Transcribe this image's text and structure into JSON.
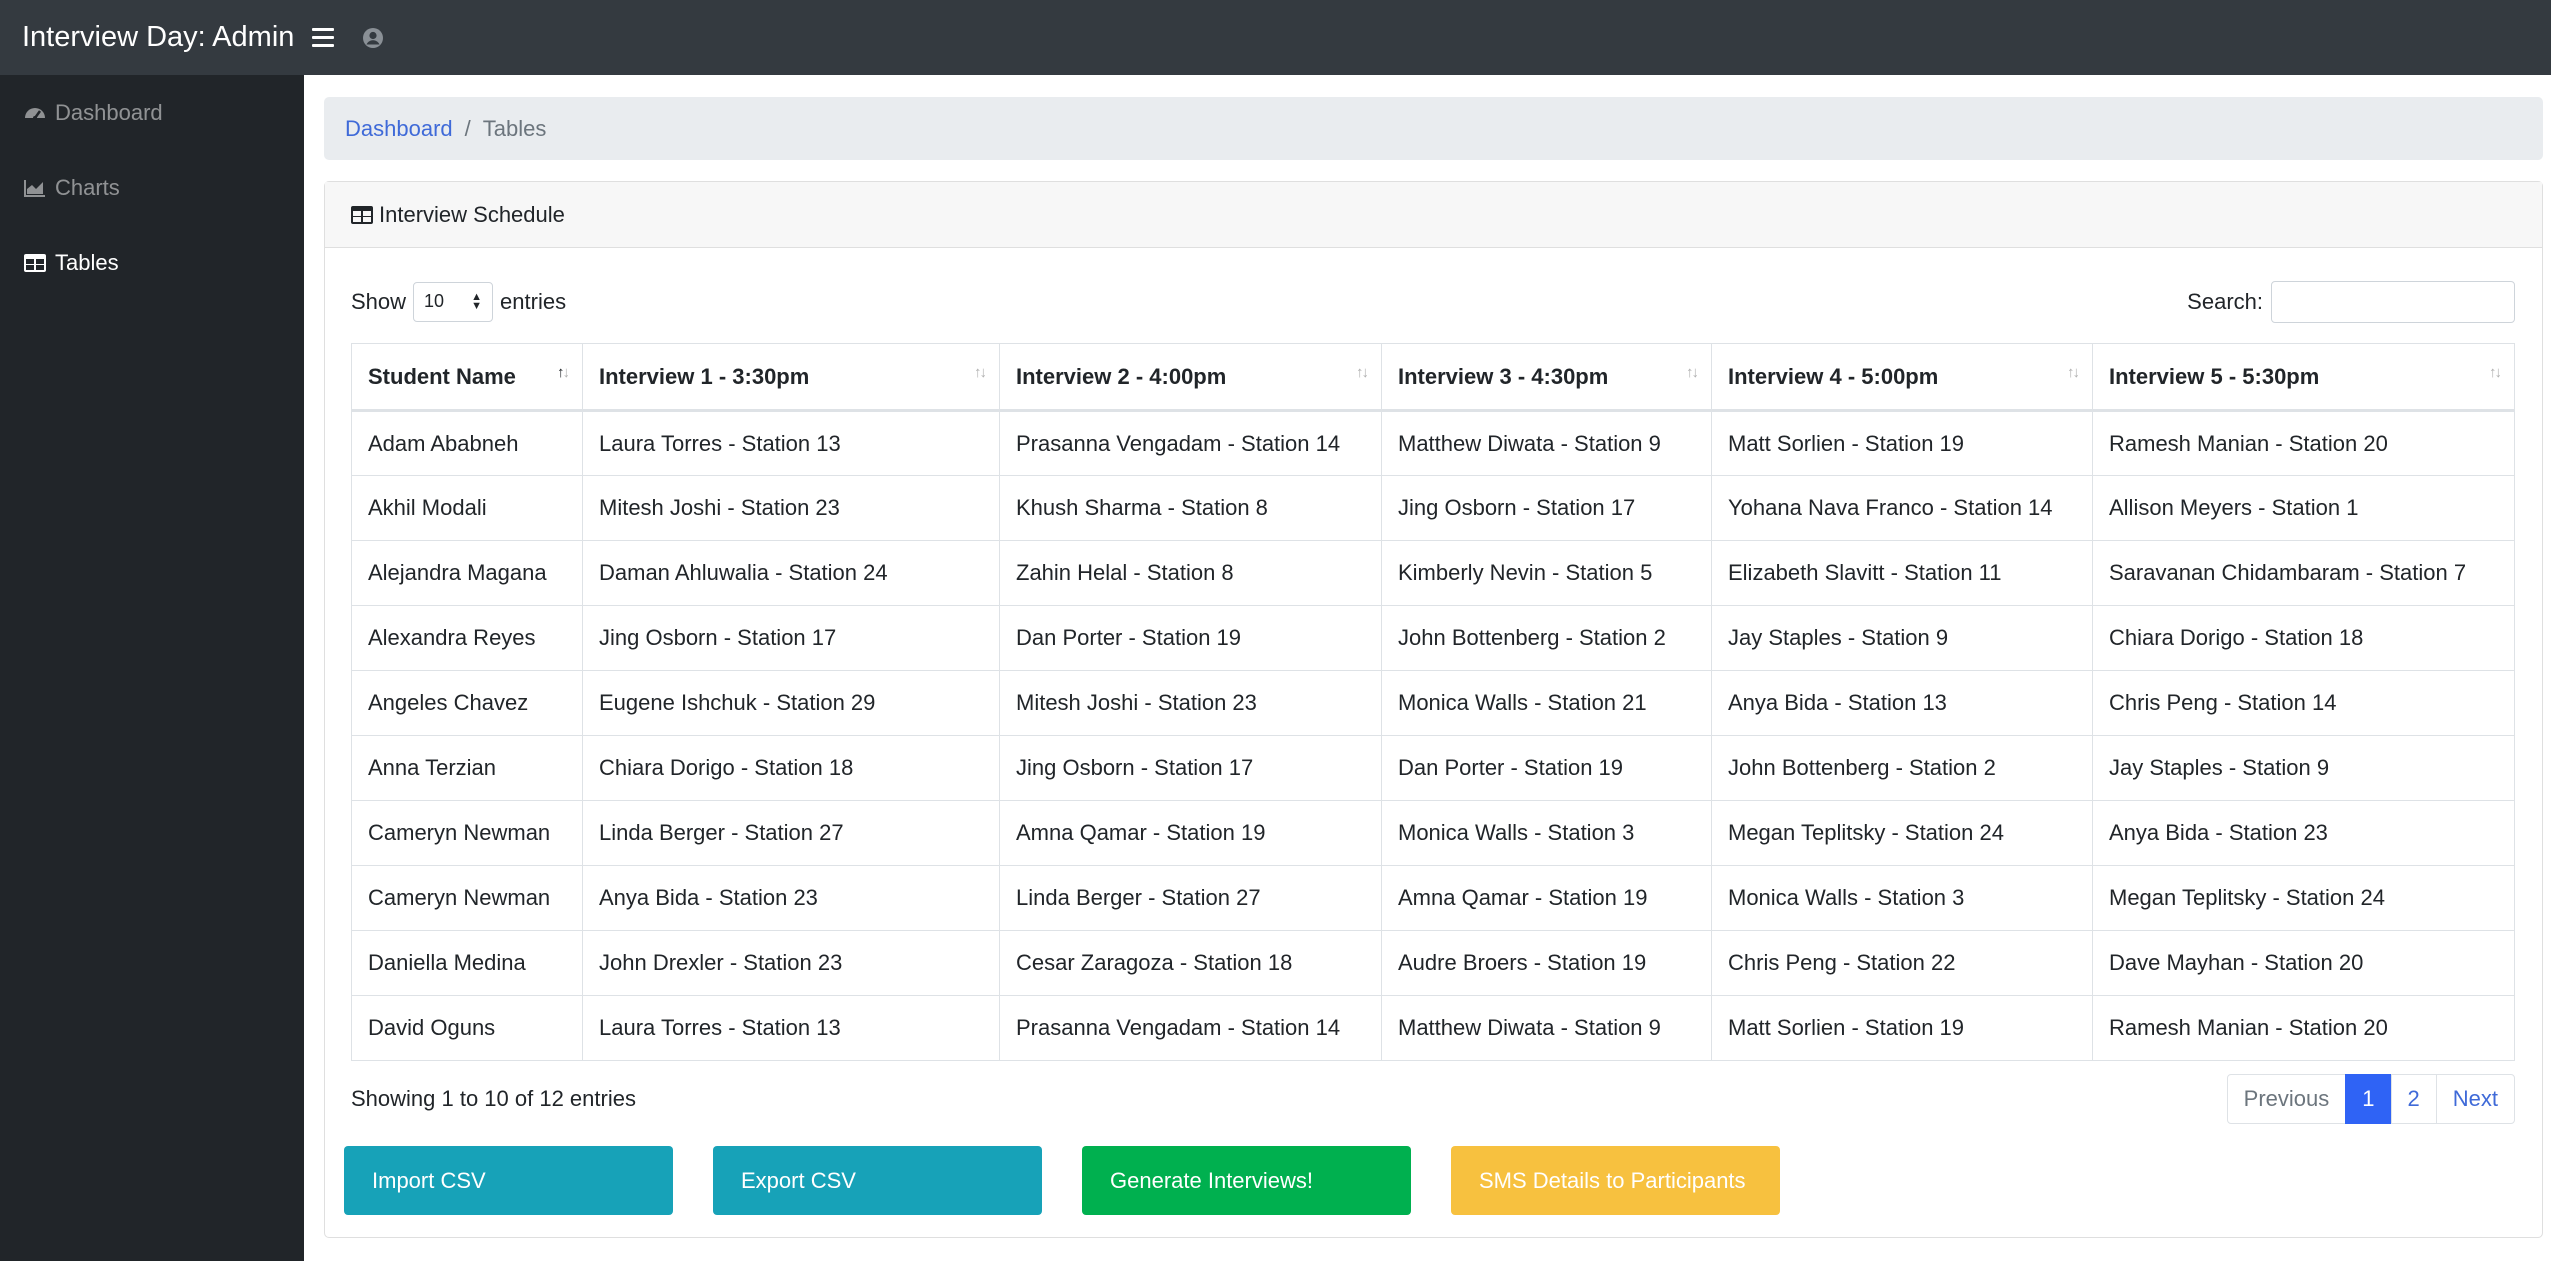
{
  "app": {
    "title": "Interview Day: Admin"
  },
  "sidebar": {
    "items": [
      {
        "label": "Dashboard",
        "icon": "tachometer-icon"
      },
      {
        "label": "Charts",
        "icon": "area-chart-icon"
      },
      {
        "label": "Tables",
        "icon": "table-icon",
        "active": true
      }
    ]
  },
  "breadcrumb": {
    "link": "Dashboard",
    "separator": "/",
    "current": "Tables"
  },
  "card": {
    "title": "Interview Schedule",
    "icon": "table-icon"
  },
  "controls": {
    "show_label": "Show",
    "entries_value": "10",
    "entries_label": "entries",
    "search_label": "Search:",
    "search_value": ""
  },
  "table": {
    "headers": [
      "Student Name",
      "Interview 1 - 3:30pm",
      "Interview 2 - 4:00pm",
      "Interview 3 - 4:30pm",
      "Interview 4 - 5:00pm",
      "Interview 5 - 5:30pm"
    ],
    "rows": [
      [
        "Adam Ababneh",
        "Laura Torres - Station 13",
        "Prasanna Vengadam - Station 14",
        "Matthew Diwata - Station 9",
        "Matt Sorlien - Station 19",
        "Ramesh Manian - Station 20"
      ],
      [
        "Akhil Modali",
        "Mitesh Joshi - Station 23",
        "Khush Sharma - Station 8",
        "Jing Osborn - Station 17",
        "Yohana Nava Franco - Station 14",
        "Allison Meyers - Station 1"
      ],
      [
        "Alejandra Magana",
        "Daman Ahluwalia - Station 24",
        "Zahin Helal - Station 8",
        "Kimberly Nevin - Station 5",
        "Elizabeth Slavitt - Station 11",
        "Saravanan Chidambaram - Station 7"
      ],
      [
        "Alexandra Reyes",
        "Jing Osborn - Station 17",
        "Dan Porter - Station 19",
        "John Bottenberg - Station 2",
        "Jay Staples - Station 9",
        "Chiara Dorigo - Station 18"
      ],
      [
        "Angeles Chavez",
        "Eugene Ishchuk - Station 29",
        "Mitesh Joshi - Station 23",
        "Monica Walls - Station 21",
        "Anya Bida - Station 13",
        "Chris Peng - Station 14"
      ],
      [
        "Anna Terzian",
        "Chiara Dorigo - Station 18",
        "Jing Osborn - Station 17",
        "Dan Porter - Station 19",
        "John Bottenberg - Station 2",
        "Jay Staples - Station 9"
      ],
      [
        "Cameryn Newman",
        "Linda Berger - Station 27",
        "Amna Qamar - Station 19",
        "Monica Walls - Station 3",
        "Megan Teplitsky - Station 24",
        "Anya Bida - Station 23"
      ],
      [
        "Cameryn Newman",
        "Anya Bida - Station 23",
        "Linda Berger - Station 27",
        "Amna Qamar - Station 19",
        "Monica Walls - Station 3",
        "Megan Teplitsky - Station 24"
      ],
      [
        "Daniella Medina",
        "John Drexler - Station 23",
        "Cesar Zaragoza - Station 18",
        "Audre Broers - Station 19",
        "Chris Peng - Station 22",
        "Dave Mayhan - Station 20"
      ],
      [
        "David Oguns",
        "Laura Torres - Station 13",
        "Prasanna Vengadam - Station 14",
        "Matthew Diwata - Station 9",
        "Matt Sorlien - Station 19",
        "Ramesh Manian - Station 20"
      ]
    ]
  },
  "footer": {
    "info": "Showing 1 to 10 of 12 entries",
    "pagination": {
      "previous": "Previous",
      "pages": [
        "1",
        "2"
      ],
      "active_page": "1",
      "next": "Next"
    }
  },
  "actions": {
    "import_label": "Import CSV",
    "export_label": "Export CSV",
    "generate_label": "Generate Interviews!",
    "sms_label": "SMS Details to Participants"
  },
  "colors": {
    "topbar": "#343a40",
    "sidebar": "#212529",
    "link": "#3f6ad8",
    "info": "#17a2b8",
    "success": "#00b04f",
    "warning": "#f7c13f",
    "active_page": "#2f63f5"
  }
}
